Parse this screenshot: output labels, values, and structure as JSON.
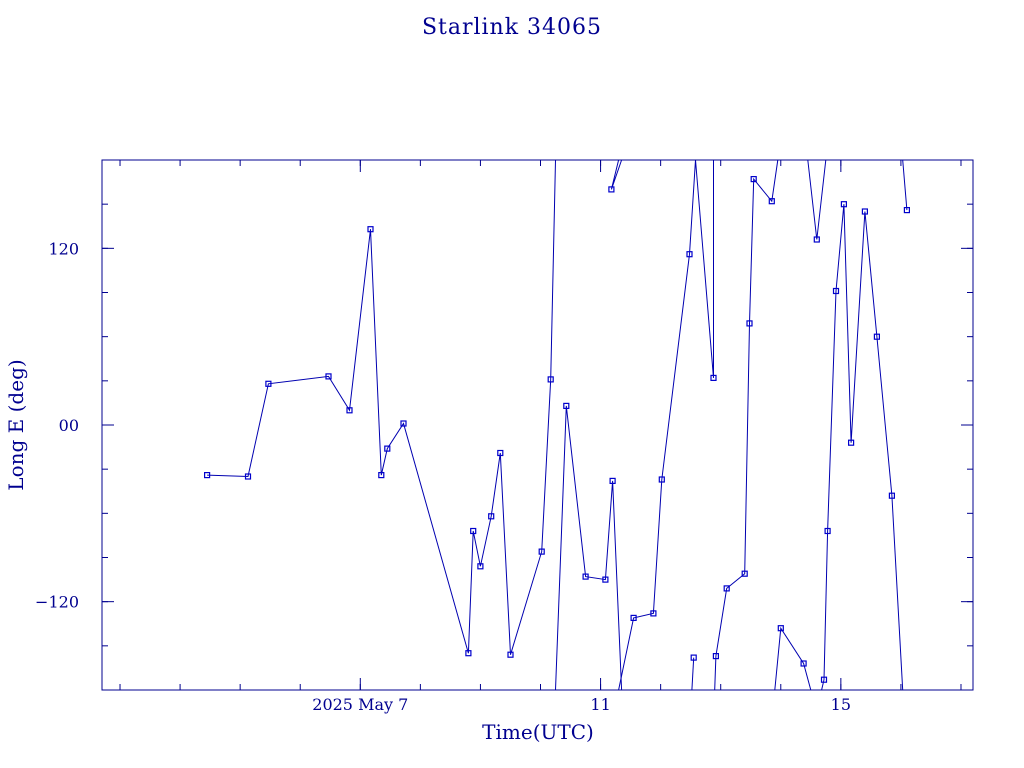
{
  "chart_data": {
    "type": "line",
    "title": "Starlink 34065",
    "xlabel": "Time(UTC)",
    "ylabel": "Long E (deg)",
    "xlim": [
      2.7,
      17.2
    ],
    "ylim": [
      -180,
      180
    ],
    "x_unit": "days of 2025 May",
    "x_ticks": [
      {
        "value": 7,
        "label": "2025 May  7"
      },
      {
        "value": 11,
        "label": "11"
      },
      {
        "value": 15,
        "label": "15"
      }
    ],
    "y_ticks": [
      {
        "value": 120,
        "label": "120"
      },
      {
        "value": 0,
        "label": "00"
      },
      {
        "value": -120,
        "label": "−120"
      }
    ],
    "colors": {
      "line": "#0000b0",
      "marker": "#0000cc",
      "text": "#00008f",
      "frame": "#00008f"
    },
    "marker": "square",
    "series": [
      {
        "points": [
          [
            4.45,
            -34
          ],
          [
            5.13,
            -35
          ],
          [
            5.47,
            28
          ],
          [
            6.47,
            33
          ],
          [
            6.82,
            10
          ],
          [
            7.17,
            133
          ],
          [
            7.35,
            -34
          ],
          [
            7.45,
            -16
          ],
          [
            7.72,
            1
          ],
          [
            8.8,
            -155
          ],
          [
            8.88,
            -72
          ],
          [
            9.0,
            -96
          ],
          [
            9.18,
            -62
          ],
          [
            9.33,
            -19
          ],
          [
            9.5,
            -156
          ],
          [
            10.02,
            -86
          ],
          [
            10.17,
            31
          ],
          [
            10.25,
            180
          ]
        ]
      },
      {
        "points": [
          [
            10.25,
            -180
          ],
          [
            10.43,
            13
          ],
          [
            10.75,
            -103
          ],
          [
            11.08,
            -105
          ],
          [
            11.2,
            -38
          ],
          [
            11.35,
            -180
          ]
        ]
      },
      {
        "points": [
          [
            11.35,
            180
          ],
          [
            11.18,
            160
          ],
          [
            11.3,
            180
          ]
        ]
      },
      {
        "points": [
          [
            11.3,
            -180
          ],
          [
            11.55,
            -131
          ],
          [
            11.88,
            -128
          ],
          [
            12.02,
            -37
          ],
          [
            12.48,
            116
          ],
          [
            12.58,
            180
          ]
        ]
      },
      {
        "points": [
          [
            12.58,
            180
          ],
          [
            12.88,
            32
          ],
          [
            12.88,
            180
          ]
        ]
      },
      {
        "points": [
          [
            12.52,
            -180
          ],
          [
            12.55,
            -158
          ]
        ]
      },
      {
        "points": [
          [
            12.9,
            -180
          ],
          [
            12.92,
            -157
          ],
          [
            13.1,
            -111
          ],
          [
            13.4,
            -101
          ],
          [
            13.48,
            69
          ],
          [
            13.55,
            167
          ],
          [
            13.85,
            152
          ],
          [
            13.95,
            180
          ]
        ]
      },
      {
        "points": [
          [
            13.9,
            -180
          ],
          [
            14.0,
            -138
          ],
          [
            14.38,
            -162
          ],
          [
            14.5,
            -180
          ]
        ]
      },
      {
        "points": [
          [
            14.45,
            180
          ],
          [
            14.6,
            126
          ],
          [
            14.75,
            180
          ]
        ]
      },
      {
        "points": [
          [
            14.68,
            -180
          ],
          [
            14.72,
            -173
          ],
          [
            14.78,
            -72
          ],
          [
            14.92,
            91
          ],
          [
            15.05,
            150
          ],
          [
            15.17,
            -12
          ],
          [
            15.4,
            145
          ],
          [
            15.6,
            60
          ],
          [
            15.85,
            -48
          ],
          [
            16.03,
            -180
          ]
        ]
      },
      {
        "points": [
          [
            16.03,
            180
          ],
          [
            16.1,
            146
          ]
        ]
      }
    ]
  }
}
